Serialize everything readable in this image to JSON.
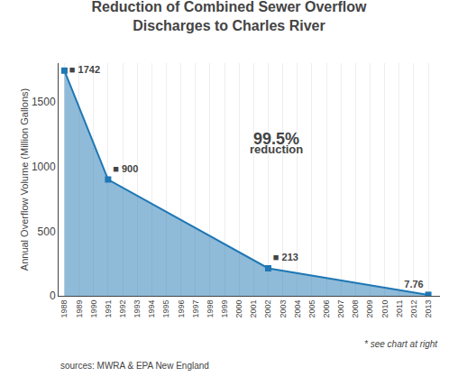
{
  "chart_data": {
    "type": "area",
    "title": "Reduction of Combined Sewer Overflow",
    "subtitle": "Discharges to Charles River",
    "y_label": "Annual Overflow Volume (Million Gallons)",
    "x": [
      1988,
      1991,
      2002,
      2013
    ],
    "values": [
      1742,
      900,
      213,
      7.76
    ],
    "value_labels": [
      "■ 1742",
      "■ 900",
      "■ 213",
      "7.76"
    ],
    "data_labels": true,
    "marker": "square",
    "xlim": [
      1987.6,
      2013.8
    ],
    "xticks": [
      1988,
      1989,
      1990,
      1991,
      1992,
      1993,
      1994,
      1995,
      1996,
      1997,
      1998,
      1999,
      2000,
      2001,
      2002,
      2003,
      2004,
      2005,
      2006,
      2007,
      2008,
      2009,
      2010,
      2011,
      2012,
      2013
    ],
    "ylim": [
      0,
      1800
    ],
    "yticks": [
      0,
      500,
      1000,
      1500
    ],
    "grid": true,
    "annotations": [
      "99.5%",
      "reduction",
      "* see chart at right",
      "sources: MWRA & EPA New England"
    ]
  }
}
